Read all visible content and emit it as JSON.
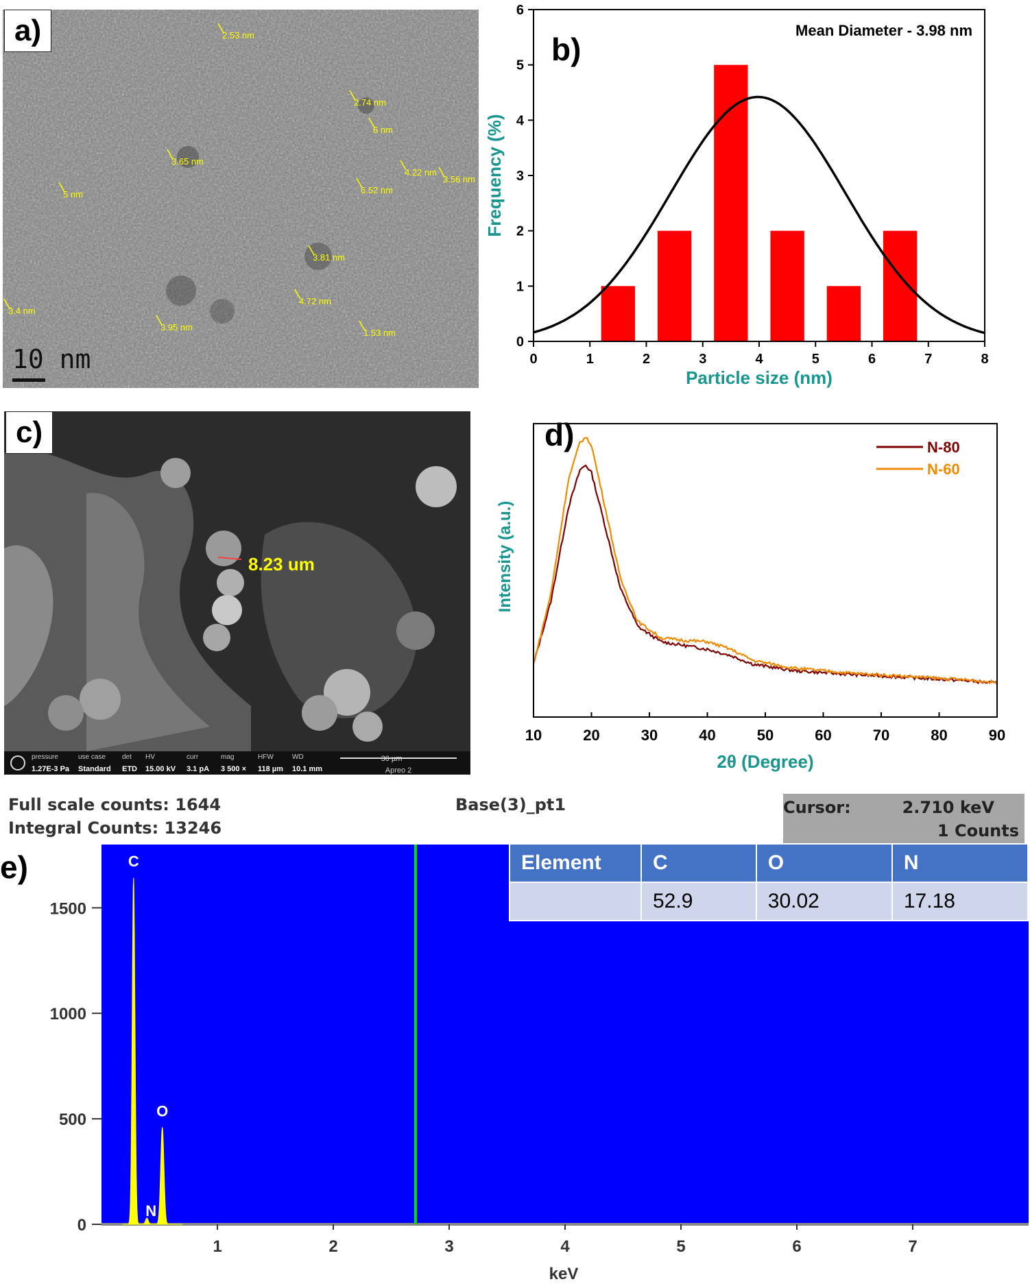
{
  "panels": {
    "a": {
      "tag": "a)",
      "scale_bar": "10 nm",
      "labels": [
        {
          "text": "2.53 nm"
        },
        {
          "text": "2.74 nm"
        },
        {
          "text": "6 nm"
        },
        {
          "text": "3.65 nm"
        },
        {
          "text": "4.22 nm"
        },
        {
          "text": "3.56 nm"
        },
        {
          "text": "5 nm"
        },
        {
          "text": "6.52 nm"
        },
        {
          "text": "3.81 nm"
        },
        {
          "text": "3.4 nm"
        },
        {
          "text": "4.72 nm"
        },
        {
          "text": "3.95 nm"
        },
        {
          "text": "1.53 nm"
        }
      ]
    },
    "c": {
      "tag": "c)",
      "measure": "8.23 um",
      "infobar": {
        "fields": [
          {
            "label": "pressure",
            "value": "1.27E-3 Pa"
          },
          {
            "label": "use case",
            "value": "Standard"
          },
          {
            "label": "det",
            "value": "ETD"
          },
          {
            "label": "HV",
            "value": "15.00 kV"
          },
          {
            "label": "curr",
            "value": "3.1 pA"
          },
          {
            "label": "mag",
            "value": "3 500 ×"
          },
          {
            "label": "HFW",
            "value": "118 µm"
          },
          {
            "label": "WD",
            "value": "10.1 mm"
          }
        ],
        "scale": "30 µm",
        "instrument": "Apreo 2"
      }
    },
    "e": {
      "tag": "e)",
      "full_scale": "Full scale counts: 1644",
      "integral": "Integral Counts: 13246",
      "sample": "Base(3)_pt1",
      "cursor_label": "Cursor:",
      "cursor_value": "2.710 keV",
      "cursor_counts": "1 Counts",
      "table_header": [
        "Element",
        "C",
        "O",
        "N"
      ],
      "table_values": [
        "",
        "52.9",
        "30.02",
        "17.18"
      ]
    }
  },
  "colors": {
    "bar": "#ff0000",
    "fit": "#000000",
    "axis_title": "#17958f",
    "n80": "#7f0000",
    "n60": "#f08a00",
    "eds_bg": "#0000ff",
    "eds_peak": "#ffff00",
    "eds_cursor": "#00dd00",
    "table_header": "#4472c4",
    "table_row": "#cfd5ea"
  },
  "chart_data": [
    {
      "id": "b",
      "type": "bar",
      "tag": "b)",
      "annotation": "Mean Diameter - 3.98 nm",
      "xlabel": "Particle size (nm)",
      "ylabel": "Frequency (%)",
      "xlim": [
        0,
        8
      ],
      "ylim": [
        0,
        6
      ],
      "xticks": [
        "0",
        "1",
        "2",
        "3",
        "4",
        "5",
        "6",
        "7",
        "8"
      ],
      "yticks": [
        "0",
        "1",
        "2",
        "3",
        "4",
        "5",
        "6"
      ],
      "bins": [
        {
          "x0": 1.2,
          "x1": 1.8,
          "value": 1
        },
        {
          "x0": 2.2,
          "x1": 2.8,
          "value": 2
        },
        {
          "x0": 3.2,
          "x1": 3.8,
          "value": 5
        },
        {
          "x0": 4.2,
          "x1": 4.8,
          "value": 2
        },
        {
          "x0": 5.2,
          "x1": 5.8,
          "value": 1
        },
        {
          "x0": 6.2,
          "x1": 6.8,
          "value": 2
        }
      ],
      "fit": {
        "type": "gaussian",
        "mean": 3.98,
        "sigma": 1.55,
        "peak": 4.42
      }
    },
    {
      "id": "d",
      "type": "line",
      "tag": "d)",
      "xlabel": "2θ (Degree)",
      "ylabel": "Intensity (a.u.)",
      "xlim": [
        10,
        90
      ],
      "xticks": [
        "10",
        "20",
        "30",
        "40",
        "50",
        "60",
        "70",
        "80",
        "90"
      ],
      "legend_position": "top-right",
      "series": [
        {
          "name": "N-80",
          "x": [
            10,
            13,
            16,
            18,
            19,
            20,
            22,
            25,
            28,
            32,
            36,
            40,
            44,
            48,
            55,
            65,
            75,
            85,
            90
          ],
          "y": [
            0.1,
            0.35,
            0.72,
            0.87,
            0.89,
            0.86,
            0.68,
            0.4,
            0.25,
            0.19,
            0.175,
            0.16,
            0.135,
            0.1,
            0.075,
            0.06,
            0.048,
            0.035,
            0.025
          ]
        },
        {
          "name": "N-60",
          "x": [
            10,
            13,
            16,
            18,
            19,
            20,
            22,
            25,
            28,
            32,
            36,
            40,
            44,
            48,
            55,
            65,
            75,
            85,
            90
          ],
          "y": [
            0.1,
            0.38,
            0.83,
            0.98,
            1.0,
            0.97,
            0.76,
            0.44,
            0.27,
            0.205,
            0.195,
            0.19,
            0.16,
            0.115,
            0.085,
            0.065,
            0.052,
            0.038,
            0.028
          ]
        }
      ]
    },
    {
      "id": "e",
      "type": "line",
      "xlabel": "keV",
      "xlim": [
        0,
        8
      ],
      "ylim": [
        0,
        1800
      ],
      "xticks": [
        "1",
        "2",
        "3",
        "4",
        "5",
        "6",
        "7"
      ],
      "yticks": [
        "0",
        "500",
        "1000",
        "1500"
      ],
      "peaks": [
        {
          "label": "C",
          "x": 0.277,
          "counts": 1644
        },
        {
          "label": "N",
          "x": 0.392,
          "counts": 30
        },
        {
          "label": "O",
          "x": 0.525,
          "counts": 460
        }
      ],
      "cursor_kev": 2.71
    }
  ]
}
